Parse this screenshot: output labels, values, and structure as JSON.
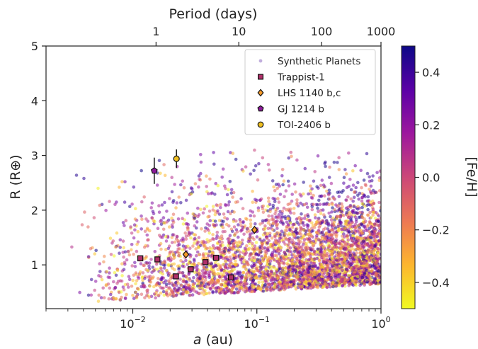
{
  "chart_data": {
    "type": "scatter",
    "xlabel_italic": "a",
    "xlabel_unit": " (au)",
    "ylabel": "R (R⊕)",
    "top_xlabel": "Period (days)",
    "colorbar_label": "[Fe/H]",
    "xscale": "log",
    "xlim": [
      0.002,
      1.0
    ],
    "ylim": [
      0.2,
      5.0
    ],
    "x_ticks": [
      {
        "value": 0.01,
        "base": "10",
        "exp": "−2"
      },
      {
        "value": 0.1,
        "base": "10",
        "exp": "−1"
      },
      {
        "value": 1.0,
        "base": "10",
        "exp": "0"
      }
    ],
    "y_ticks": [
      {
        "value": 1,
        "label": "1"
      },
      {
        "value": 2,
        "label": "2"
      },
      {
        "value": 3,
        "label": "3"
      },
      {
        "value": 4,
        "label": "4"
      },
      {
        "value": 5,
        "label": "5"
      }
    ],
    "top_ticks": [
      {
        "value": 0.0154,
        "label": "1"
      },
      {
        "value": 0.0715,
        "label": "10"
      },
      {
        "value": 0.332,
        "label": "100"
      },
      {
        "value": 1.54,
        "label": "1000"
      }
    ],
    "colorbar": {
      "range": [
        -0.5,
        0.5
      ],
      "ticks": [
        {
          "value": 0.4,
          "label": "0.4"
        },
        {
          "value": 0.2,
          "label": "0.2"
        },
        {
          "value": 0.0,
          "label": "0.0"
        },
        {
          "value": -0.2,
          "label": "−0.2"
        },
        {
          "value": -0.4,
          "label": "−0.4"
        }
      ],
      "colormap": "plasma_r",
      "colors": [
        "#f0f921",
        "#fdb42f",
        "#ed7953",
        "#cc4778",
        "#9c179e",
        "#5c01a6",
        "#0d0887"
      ]
    },
    "synthetic_planets": {
      "name": "Synthetic Planets",
      "description_count": 5000,
      "x_range": [
        0.003,
        1.0
      ],
      "y_range": [
        0.3,
        4.3
      ],
      "metallicity_range": [
        -0.5,
        0.5
      ]
    },
    "series": [
      {
        "name": "Trappist-1",
        "marker": "square",
        "color": "#b0306a",
        "points": [
          {
            "x": 0.0115,
            "y": 1.12
          },
          {
            "x": 0.0158,
            "y": 1.1
          },
          {
            "x": 0.0223,
            "y": 0.79
          },
          {
            "x": 0.0293,
            "y": 0.92
          },
          {
            "x": 0.0385,
            "y": 1.05
          },
          {
            "x": 0.0469,
            "y": 1.13
          },
          {
            "x": 0.0619,
            "y": 0.77
          }
        ]
      },
      {
        "name": "LHS 1140 b,c",
        "marker": "diamond",
        "color": "#f59a2a",
        "points": [
          {
            "x": 0.0268,
            "y": 1.19
          },
          {
            "x": 0.0957,
            "y": 1.64
          }
        ]
      },
      {
        "name": "GJ 1214 b",
        "marker": "pentagon",
        "color": "#8c1a9a",
        "points": [
          {
            "x": 0.0149,
            "y": 2.72,
            "err": 0.24
          }
        ]
      },
      {
        "name": "TOI-2406 b",
        "marker": "circle",
        "color": "#f0c020",
        "points": [
          {
            "x": 0.0225,
            "y": 2.94,
            "err": 0.17
          }
        ]
      }
    ],
    "legend_position": "top-right",
    "grid": false
  }
}
